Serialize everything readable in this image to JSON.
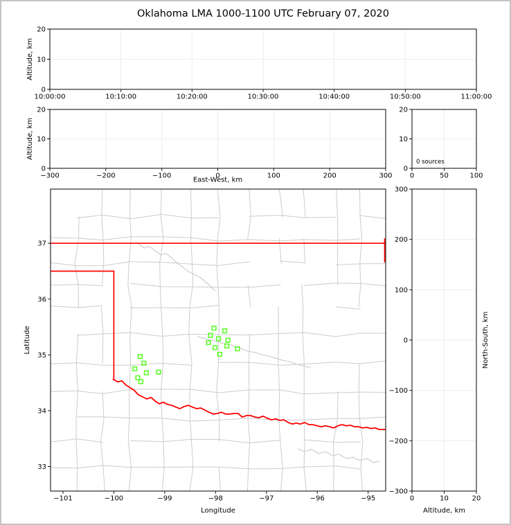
{
  "title": "Oklahoma LMA 1000-1100 UTC February 07, 2020",
  "colors": {
    "background": "#ffffff",
    "frame": "#c3c3c3",
    "axis": "#000000",
    "grid": "#ededed",
    "county_line": "#cccccc",
    "river_line": "#c9c9c9",
    "state_border": "#ff0000",
    "station": "#66ff33"
  },
  "chart_data": [
    {
      "id": "time_height",
      "type": "scatter",
      "ylabel": "Altitude, km",
      "ylim": [
        0,
        20
      ],
      "yticks": [
        0,
        10,
        20
      ],
      "xticklabels": [
        "10:00:00",
        "10:10:00",
        "10:20:00",
        "10:30:00",
        "10:40:00",
        "10:50:00",
        "11:00:00"
      ],
      "grid": true,
      "points": []
    },
    {
      "id": "ew_height",
      "type": "scatter",
      "ylabel": "Altitude, km",
      "xlabel": "East-West, km",
      "xlim": [
        -300,
        300
      ],
      "xticks": [
        -300,
        -200,
        -100,
        0,
        100,
        200,
        300
      ],
      "ylim": [
        0,
        20
      ],
      "yticks": [
        0,
        10,
        20
      ],
      "grid": true,
      "points": []
    },
    {
      "id": "source_histogram",
      "type": "scatter",
      "xlim": [
        0,
        100
      ],
      "xticks": [
        0,
        50,
        100
      ],
      "ylim": [
        0,
        20
      ],
      "yticks": [
        0,
        10,
        20
      ],
      "annotation": "0 sources",
      "grid": true,
      "points": []
    },
    {
      "id": "map",
      "type": "map-scatter",
      "xlabel": "Longitude",
      "ylabel": "Latitude",
      "xlim": [
        -101.245,
        -94.655
      ],
      "xticks": [
        -101,
        -100,
        -99,
        -98,
        -97,
        -96,
        -95
      ],
      "ylim": [
        32.56,
        37.97
      ],
      "yticks": [
        33,
        34,
        35,
        36,
        37
      ],
      "grid": false,
      "stations_lon_lat": [
        [
          -98.03,
          35.48
        ],
        [
          -97.82,
          35.43
        ],
        [
          -98.1,
          35.35
        ],
        [
          -97.94,
          35.29
        ],
        [
          -98.14,
          35.22
        ],
        [
          -97.76,
          35.26
        ],
        [
          -97.78,
          35.16
        ],
        [
          -98.01,
          35.13
        ],
        [
          -97.57,
          35.11
        ],
        [
          -97.92,
          35.01
        ],
        [
          -99.48,
          34.97
        ],
        [
          -99.41,
          34.85
        ],
        [
          -99.59,
          34.75
        ],
        [
          -99.36,
          34.68
        ],
        [
          -99.12,
          34.69
        ],
        [
          -99.53,
          34.59
        ],
        [
          -99.47,
          34.52
        ]
      ],
      "state_border": {
        "north_lat": 37.0,
        "panhandle_lat": 36.5,
        "panhandle_east_lon": -100.0,
        "panhandle_corner_lat": 34.565
      },
      "basemap": {
        "east_border_uv": [
          [
            0.997,
            0.165
          ],
          [
            0.997,
            0.241
          ]
        ],
        "red_river_uv": [
          [
            0.187,
            0.63
          ],
          [
            0.2,
            0.638
          ],
          [
            0.213,
            0.635
          ],
          [
            0.225,
            0.649
          ],
          [
            0.238,
            0.658
          ],
          [
            0.25,
            0.667
          ],
          [
            0.262,
            0.681
          ],
          [
            0.275,
            0.688
          ],
          [
            0.287,
            0.695
          ],
          [
            0.3,
            0.69
          ],
          [
            0.312,
            0.702
          ],
          [
            0.324,
            0.711
          ],
          [
            0.337,
            0.706
          ],
          [
            0.349,
            0.713
          ],
          [
            0.362,
            0.716
          ],
          [
            0.374,
            0.722
          ],
          [
            0.386,
            0.727
          ],
          [
            0.399,
            0.72
          ],
          [
            0.411,
            0.716
          ],
          [
            0.424,
            0.722
          ],
          [
            0.436,
            0.727
          ],
          [
            0.448,
            0.725
          ],
          [
            0.461,
            0.732
          ],
          [
            0.473,
            0.739
          ],
          [
            0.486,
            0.745
          ],
          [
            0.498,
            0.743
          ],
          [
            0.51,
            0.739
          ],
          [
            0.523,
            0.745
          ],
          [
            0.535,
            0.745
          ],
          [
            0.548,
            0.743
          ],
          [
            0.56,
            0.743
          ],
          [
            0.572,
            0.755
          ],
          [
            0.585,
            0.75
          ],
          [
            0.597,
            0.75
          ],
          [
            0.61,
            0.755
          ],
          [
            0.622,
            0.757
          ],
          [
            0.634,
            0.752
          ],
          [
            0.647,
            0.759
          ],
          [
            0.659,
            0.764
          ],
          [
            0.672,
            0.761
          ],
          [
            0.684,
            0.766
          ],
          [
            0.696,
            0.764
          ],
          [
            0.709,
            0.773
          ],
          [
            0.721,
            0.778
          ],
          [
            0.733,
            0.775
          ],
          [
            0.746,
            0.778
          ],
          [
            0.758,
            0.773
          ],
          [
            0.771,
            0.78
          ],
          [
            0.783,
            0.78
          ],
          [
            0.795,
            0.784
          ],
          [
            0.808,
            0.787
          ],
          [
            0.82,
            0.784
          ],
          [
            0.833,
            0.787
          ],
          [
            0.845,
            0.791
          ],
          [
            0.857,
            0.784
          ],
          [
            0.87,
            0.78
          ],
          [
            0.882,
            0.784
          ],
          [
            0.895,
            0.782
          ],
          [
            0.907,
            0.787
          ],
          [
            0.919,
            0.787
          ],
          [
            0.932,
            0.791
          ],
          [
            0.944,
            0.789
          ],
          [
            0.956,
            0.793
          ],
          [
            0.969,
            0.791
          ],
          [
            0.981,
            0.796
          ],
          [
            1.0,
            0.796
          ]
        ],
        "rivers_uv": [
          [
            [
              0.262,
              0.181
            ],
            [
              0.279,
              0.195
            ],
            [
              0.295,
              0.19
            ],
            [
              0.312,
              0.204
            ],
            [
              0.329,
              0.218
            ],
            [
              0.345,
              0.213
            ],
            [
              0.362,
              0.229
            ],
            [
              0.378,
              0.245
            ],
            [
              0.395,
              0.259
            ],
            [
              0.411,
              0.273
            ],
            [
              0.428,
              0.282
            ],
            [
              0.448,
              0.294
            ],
            [
              0.465,
              0.31
            ],
            [
              0.479,
              0.323
            ],
            [
              0.49,
              0.337
            ]
          ],
          [
            [
              0.44,
              0.489
            ],
            [
              0.461,
              0.495
            ],
            [
              0.481,
              0.5
            ],
            [
              0.498,
              0.505
            ],
            [
              0.514,
              0.511
            ],
            [
              0.533,
              0.514
            ],
            [
              0.552,
              0.521
            ],
            [
              0.572,
              0.53
            ],
            [
              0.589,
              0.537
            ],
            [
              0.61,
              0.541
            ],
            [
              0.63,
              0.548
            ],
            [
              0.651,
              0.553
            ],
            [
              0.672,
              0.56
            ],
            [
              0.692,
              0.567
            ],
            [
              0.713,
              0.571
            ],
            [
              0.733,
              0.58
            ],
            [
              0.754,
              0.585
            ],
            [
              0.775,
              0.592
            ]
          ],
          [
            [
              0.738,
              0.86
            ],
            [
              0.758,
              0.869
            ],
            [
              0.779,
              0.862
            ],
            [
              0.8,
              0.876
            ],
            [
              0.82,
              0.869
            ],
            [
              0.841,
              0.883
            ],
            [
              0.861,
              0.878
            ],
            [
              0.882,
              0.892
            ],
            [
              0.903,
              0.888
            ],
            [
              0.923,
              0.899
            ],
            [
              0.944,
              0.892
            ],
            [
              0.965,
              0.906
            ],
            [
              0.981,
              0.901
            ]
          ]
        ]
      },
      "points": []
    },
    {
      "id": "ns_height",
      "type": "scatter",
      "xlabel": "Altitude, km",
      "ylabel": "North-South, km",
      "xlim": [
        0,
        20
      ],
      "xticks": [
        0,
        10,
        20
      ],
      "ylim": [
        -300,
        300
      ],
      "yticks": [
        -300,
        -200,
        -100,
        0,
        100,
        200,
        300
      ],
      "grid": true,
      "points": []
    }
  ]
}
